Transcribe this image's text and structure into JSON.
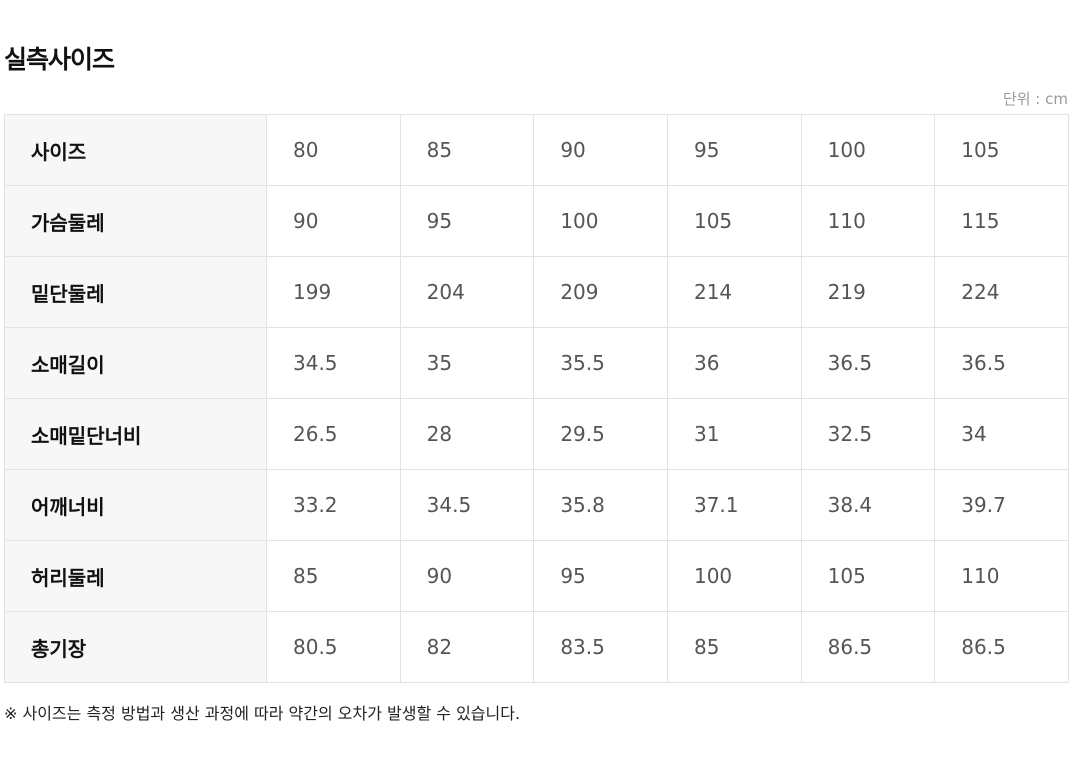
{
  "title": "실측사이즈",
  "unit_label": "단위 : cm",
  "rows": [
    {
      "label": "사이즈",
      "values": [
        "80",
        "85",
        "90",
        "95",
        "100",
        "105"
      ]
    },
    {
      "label": "가슴둘레",
      "values": [
        "90",
        "95",
        "100",
        "105",
        "110",
        "115"
      ]
    },
    {
      "label": "밑단둘레",
      "values": [
        "199",
        "204",
        "209",
        "214",
        "219",
        "224"
      ]
    },
    {
      "label": "소매길이",
      "values": [
        "34.5",
        "35",
        "35.5",
        "36",
        "36.5",
        "36.5"
      ]
    },
    {
      "label": "소매밑단너비",
      "values": [
        "26.5",
        "28",
        "29.5",
        "31",
        "32.5",
        "34"
      ]
    },
    {
      "label": "어깨너비",
      "values": [
        "33.2",
        "34.5",
        "35.8",
        "37.1",
        "38.4",
        "39.7"
      ]
    },
    {
      "label": "허리둘레",
      "values": [
        "85",
        "90",
        "95",
        "100",
        "105",
        "110"
      ]
    },
    {
      "label": "총기장",
      "values": [
        "80.5",
        "82",
        "83.5",
        "85",
        "86.5",
        "86.5"
      ]
    }
  ],
  "note": "※ 사이즈는 측정 방법과 생산 과정에 따라 약간의 오차가 발생할 수 있습니다."
}
